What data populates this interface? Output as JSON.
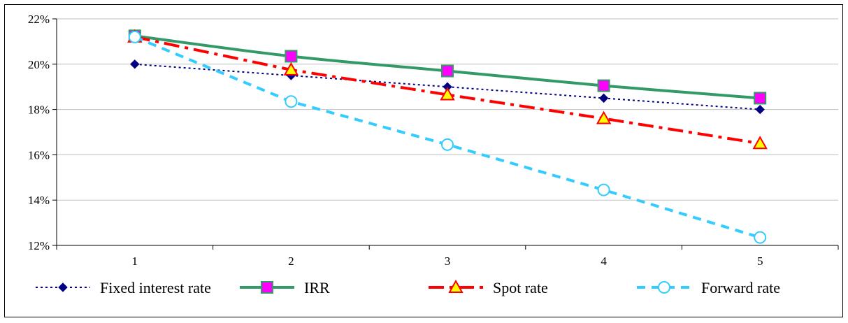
{
  "chart_data": {
    "type": "line",
    "categories": [
      "1",
      "2",
      "3",
      "4",
      "5"
    ],
    "yticks": [
      "12%",
      "14%",
      "16%",
      "18%",
      "20%",
      "22%"
    ],
    "ylim": [
      12,
      22
    ],
    "grid": true,
    "legend_position": "bottom",
    "series": [
      {
        "name": "Fixed interest rate",
        "values": [
          20.0,
          19.5,
          19.0,
          18.5,
          18.0
        ],
        "color": "#000080",
        "dash": "dotted",
        "marker": "diamond",
        "marker_fill": "#000080",
        "marker_stroke": "#000080"
      },
      {
        "name": "IRR",
        "values": [
          21.25,
          20.35,
          19.7,
          19.05,
          18.5
        ],
        "color": "#339966",
        "dash": "solid",
        "marker": "square",
        "marker_fill": "#ff00ff",
        "marker_stroke": "#339966"
      },
      {
        "name": "Spot rate",
        "values": [
          21.2,
          19.75,
          18.65,
          17.6,
          16.5
        ],
        "color": "#ff0000",
        "dash": "dashdot",
        "marker": "triangle",
        "marker_fill": "#ffff00",
        "marker_stroke": "#ff0000"
      },
      {
        "name": "Forward rate",
        "values": [
          21.2,
          18.35,
          16.45,
          14.45,
          12.35
        ],
        "color": "#33ccff",
        "dash": "dashed",
        "marker": "circle",
        "marker_fill": "#ffffff",
        "marker_stroke": "#33ccff"
      }
    ]
  }
}
